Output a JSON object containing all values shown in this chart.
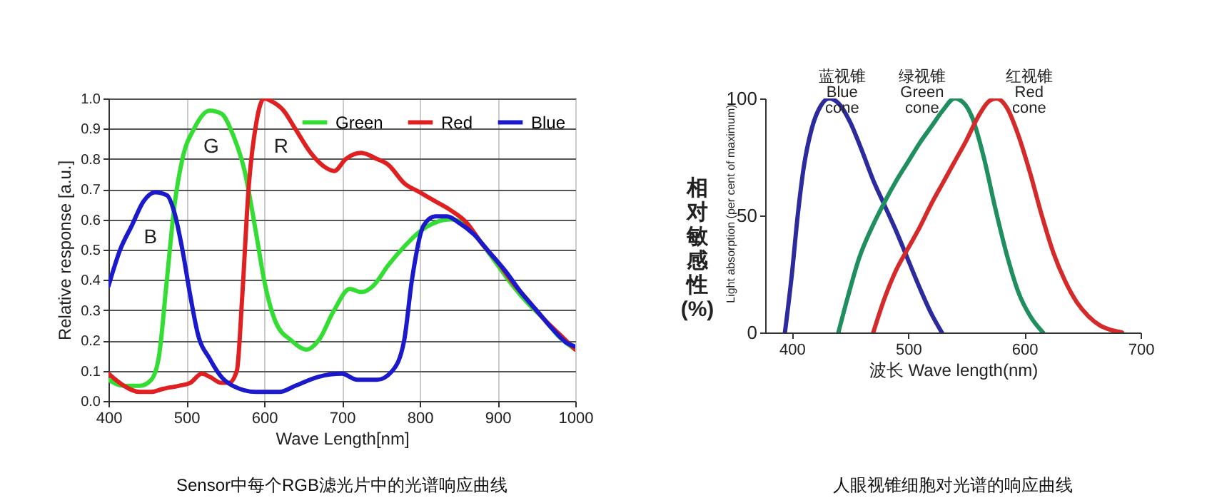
{
  "chart_data": [
    {
      "type": "line",
      "title": "Sensor中每个RGB滤光片中的光谱响应曲线",
      "xlabel": "Wave Length[nm]",
      "ylabel": "Relative response [a.u.]",
      "xlim": [
        400,
        1000
      ],
      "xticks": [
        400,
        500,
        600,
        700,
        800,
        900,
        1000
      ],
      "ylim": [
        0,
        1.0
      ],
      "yticks": [
        {
          "value": 0,
          "label": "0.0"
        },
        0.1,
        0.2,
        0.3,
        0.4,
        0.5,
        0.6,
        0.7,
        0.8,
        0.9,
        {
          "value": 1,
          "label": "1.0"
        }
      ],
      "grid": true,
      "legend": "top right",
      "series": [
        {
          "name": "Green",
          "color": "#33dd33",
          "x": [
            400,
            420,
            440,
            455,
            465,
            475,
            485,
            495,
            510,
            530,
            545,
            560,
            575,
            590,
            600,
            615,
            635,
            655,
            670,
            690,
            710,
            725,
            740,
            760,
            780,
            800,
            820,
            840,
            860,
            880,
            900,
            920,
            940,
            960,
            980,
            1000
          ],
          "values": [
            0.07,
            0.05,
            0.05,
            0.07,
            0.15,
            0.4,
            0.65,
            0.8,
            0.9,
            0.96,
            0.95,
            0.88,
            0.76,
            0.55,
            0.4,
            0.26,
            0.2,
            0.17,
            0.2,
            0.3,
            0.37,
            0.36,
            0.38,
            0.45,
            0.51,
            0.56,
            0.59,
            0.6,
            0.58,
            0.52,
            0.45,
            0.38,
            0.32,
            0.27,
            0.21,
            0.17
          ]
        },
        {
          "name": "Red",
          "color": "#e02020",
          "x": [
            400,
            420,
            440,
            455,
            470,
            490,
            505,
            520,
            530,
            545,
            555,
            565,
            572,
            580,
            590,
            600,
            610,
            625,
            640,
            660,
            680,
            690,
            705,
            725,
            745,
            760,
            780,
            800,
            820,
            840,
            860,
            880,
            900,
            920,
            940,
            960,
            980,
            1000
          ],
          "values": [
            0.09,
            0.05,
            0.03,
            0.03,
            0.04,
            0.05,
            0.06,
            0.09,
            0.08,
            0.06,
            0.06,
            0.1,
            0.35,
            0.7,
            0.92,
            1.0,
            0.99,
            0.96,
            0.9,
            0.82,
            0.77,
            0.76,
            0.8,
            0.82,
            0.8,
            0.78,
            0.72,
            0.69,
            0.66,
            0.63,
            0.59,
            0.52,
            0.46,
            0.39,
            0.33,
            0.27,
            0.22,
            0.17
          ]
        },
        {
          "name": "Blue",
          "color": "#1a1acc",
          "x": [
            400,
            415,
            430,
            445,
            460,
            475,
            485,
            495,
            505,
            515,
            530,
            545,
            560,
            590,
            620,
            640,
            670,
            700,
            720,
            745,
            765,
            780,
            790,
            805,
            820,
            835,
            850,
            870,
            890,
            910,
            930,
            950,
            970,
            990,
            1000
          ],
          "values": [
            0.38,
            0.5,
            0.58,
            0.66,
            0.69,
            0.68,
            0.62,
            0.5,
            0.35,
            0.22,
            0.14,
            0.08,
            0.05,
            0.03,
            0.03,
            0.05,
            0.08,
            0.09,
            0.07,
            0.07,
            0.1,
            0.2,
            0.4,
            0.58,
            0.61,
            0.61,
            0.59,
            0.55,
            0.49,
            0.43,
            0.36,
            0.3,
            0.24,
            0.19,
            0.18
          ]
        }
      ],
      "annotations": [
        "G",
        "R",
        "B"
      ]
    },
    {
      "type": "line",
      "title": "人眼视锥细胞对光谱的响应曲线",
      "xlabel": "波长 Wave length(nm)",
      "ylabel": "相对敏感性(%)",
      "xlim": [
        377,
        700
      ],
      "xticks": [
        400,
        500,
        600,
        700
      ],
      "ylim": [
        0,
        100
      ],
      "yticks": [
        0,
        50,
        100
      ],
      "series": [
        {
          "name": "蓝视锥 Blue cone",
          "color": "#2b2b9e",
          "x": [
            394,
            400,
            405,
            410,
            417,
            425,
            432,
            440,
            450,
            460,
            470,
            480,
            490,
            500,
            510,
            520,
            529
          ],
          "values": [
            0,
            25,
            50,
            70,
            87,
            97,
            100,
            98,
            90,
            78,
            65,
            54,
            43,
            31,
            19,
            8,
            0
          ]
        },
        {
          "name": "绿视锥 Green cone",
          "color": "#1f8f5f",
          "x": [
            440,
            448,
            458,
            468,
            480,
            490,
            500,
            510,
            520,
            530,
            540,
            548,
            555,
            565,
            575,
            585,
            595,
            605,
            616
          ],
          "values": [
            0,
            15,
            32,
            44,
            56,
            65,
            73,
            81,
            88,
            95,
            100,
            98,
            92,
            75,
            53,
            33,
            17,
            7,
            0
          ]
        },
        {
          "name": "红视锥 Red cone",
          "color": "#d42a2a",
          "x": [
            470,
            480,
            490,
            500,
            510,
            520,
            530,
            540,
            550,
            560,
            570,
            576,
            585,
            595,
            605,
            615,
            625,
            635,
            645,
            655,
            665,
            675,
            684
          ],
          "values": [
            0,
            15,
            27,
            36,
            45,
            55,
            64,
            73,
            82,
            92,
            99,
            100,
            96,
            84,
            68,
            50,
            34,
            22,
            13,
            7,
            3,
            1,
            0
          ]
        }
      ],
      "annotations": [
        "Light absorption (per cent of maximum)"
      ]
    }
  ]
}
